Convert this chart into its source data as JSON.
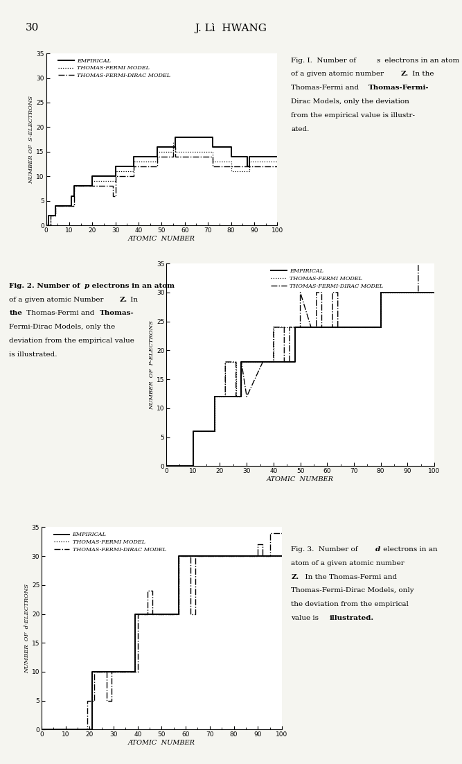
{
  "page_title": "J. Lì  HWANG",
  "page_number": "30",
  "fig1": {
    "ylabel": "NUMBER OF  S-ELECTRONS",
    "xlabel": "ATOMIC  NUMBER",
    "xlim": [
      0,
      100
    ],
    "ylim": [
      0,
      35
    ],
    "yticks": [
      0,
      5,
      10,
      15,
      20,
      25,
      30,
      35
    ],
    "xticks": [
      0,
      10,
      20,
      30,
      40,
      50,
      60,
      70,
      80,
      90,
      100
    ],
    "empirical_x": [
      0,
      1,
      1,
      2,
      2,
      3,
      3,
      4,
      4,
      10,
      10,
      11,
      11,
      12,
      12,
      19,
      19,
      20,
      20,
      29,
      29,
      30,
      30,
      37,
      37,
      38,
      38,
      47,
      47,
      48,
      48,
      55,
      55,
      56,
      56,
      72,
      72,
      80,
      80,
      87,
      87,
      88,
      88,
      100
    ],
    "empirical_y": [
      0,
      0,
      2,
      2,
      2,
      2,
      2,
      2,
      4,
      4,
      4,
      4,
      6,
      6,
      8,
      8,
      8,
      8,
      10,
      10,
      10,
      10,
      12,
      12,
      12,
      12,
      14,
      14,
      14,
      14,
      16,
      16,
      16,
      16,
      18,
      18,
      16,
      16,
      14,
      14,
      12,
      12,
      14,
      14
    ],
    "tf_x": [
      0,
      2,
      2,
      4,
      4,
      12,
      12,
      20,
      20,
      21,
      21,
      29,
      29,
      30,
      30,
      37,
      37,
      38,
      38,
      48,
      48,
      55,
      55,
      56,
      56,
      70,
      70,
      72,
      72,
      80,
      80,
      87,
      87,
      88,
      88,
      100
    ],
    "tf_y": [
      0,
      0,
      2,
      2,
      4,
      4,
      8,
      8,
      9,
      9,
      9,
      9,
      9,
      9,
      11,
      11,
      11,
      11,
      13,
      13,
      15,
      15,
      17,
      17,
      15,
      15,
      15,
      15,
      13,
      13,
      11,
      11,
      11,
      11,
      13,
      13
    ],
    "tfd_x": [
      0,
      2,
      2,
      4,
      4,
      12,
      12,
      20,
      20,
      21,
      21,
      29,
      29,
      30,
      30,
      37,
      37,
      38,
      38,
      48,
      48,
      55,
      55,
      56,
      56,
      63,
      63,
      71,
      71,
      72,
      72,
      80,
      80,
      87,
      87,
      88,
      88,
      100
    ],
    "tfd_y": [
      0,
      0,
      2,
      2,
      4,
      4,
      8,
      8,
      8,
      8,
      8,
      8,
      6,
      6,
      10,
      10,
      10,
      10,
      12,
      12,
      14,
      14,
      16,
      16,
      14,
      14,
      14,
      14,
      14,
      14,
      12,
      12,
      12,
      12,
      12,
      12,
      12,
      12
    ],
    "caption": "Fig. I.  Number of  s  electrons in an atom\n         of a given atomic number  Z.  In the\n         Thomas-Fermi and  Thomas-Fermi-\n         Dirac Models, only the deviation\n         from the empirical value is illustr-\n         ated."
  },
  "fig2": {
    "ylabel": "NUMBER  OF  P-ELECTRONS",
    "xlabel": "ATOMIC  NUMBER",
    "xlim": [
      0,
      100
    ],
    "ylim": [
      0,
      35
    ],
    "yticks": [
      0,
      5,
      10,
      15,
      20,
      25,
      30,
      35
    ],
    "xticks": [
      0,
      10,
      20,
      30,
      40,
      50,
      60,
      70,
      80,
      90,
      100
    ],
    "empirical_x": [
      0,
      2,
      2,
      10,
      10,
      12,
      12,
      18,
      18,
      20,
      20,
      28,
      28,
      30,
      30,
      36,
      36,
      40,
      40,
      48,
      48,
      54,
      54,
      56,
      56,
      80,
      80,
      86,
      86,
      90,
      90,
      100
    ],
    "empirical_y": [
      0,
      0,
      0,
      0,
      6,
      6,
      6,
      6,
      12,
      12,
      12,
      12,
      18,
      18,
      18,
      18,
      18,
      18,
      18,
      18,
      24,
      24,
      24,
      24,
      24,
      24,
      30,
      30,
      30,
      30,
      30,
      30
    ],
    "tf_x": [
      0,
      2,
      2,
      10,
      10,
      12,
      12,
      18,
      18,
      20,
      20,
      22,
      22,
      26,
      26,
      28,
      28,
      30,
      30,
      36,
      36,
      40,
      40,
      48,
      48,
      54,
      54,
      56,
      56,
      80,
      80,
      86,
      86,
      90,
      90,
      100
    ],
    "tf_y": [
      0,
      0,
      0,
      0,
      6,
      6,
      6,
      6,
      12,
      12,
      12,
      12,
      18,
      18,
      12,
      12,
      18,
      18,
      18,
      18,
      18,
      18,
      24,
      24,
      24,
      24,
      24,
      24,
      24,
      24,
      30,
      30,
      30,
      30,
      30,
      30
    ],
    "tfd_x": [
      0,
      2,
      2,
      10,
      10,
      12,
      12,
      18,
      18,
      20,
      20,
      22,
      22,
      26,
      26,
      28,
      28,
      30,
      30,
      36,
      36,
      40,
      40,
      44,
      44,
      46,
      46,
      50,
      50,
      54,
      54,
      56,
      56,
      58,
      58,
      62,
      62,
      64,
      64,
      80,
      80,
      86,
      86,
      90,
      90,
      94,
      94,
      100
    ],
    "tfd_y": [
      0,
      0,
      0,
      0,
      6,
      6,
      6,
      6,
      12,
      12,
      12,
      12,
      18,
      18,
      12,
      12,
      18,
      12,
      12,
      18,
      18,
      18,
      24,
      24,
      18,
      18,
      24,
      24,
      30,
      24,
      24,
      24,
      30,
      30,
      24,
      24,
      30,
      30,
      24,
      24,
      30,
      30,
      30,
      30,
      30,
      30,
      36,
      36
    ],
    "caption": "Fig. 2.  Number of  p  electrons in an atom\n         of a given atomic Number  Z.  In\n         the Thomas-Fermi and  Thomas-\n         Fermi-Dirac Models, only the\n         deviation from the empirical value\n         is illustrated."
  },
  "fig3": {
    "ylabel": "NUMBER  OF  d-ELECTRONS",
    "xlabel": "ATOMIC  NUMBER",
    "xlim": [
      0,
      100
    ],
    "ylim": [
      0,
      35
    ],
    "yticks": [
      0,
      5,
      10,
      15,
      20,
      25,
      30,
      35
    ],
    "xticks": [
      0,
      10,
      20,
      30,
      40,
      50,
      60,
      70,
      80,
      90,
      100
    ],
    "empirical_x": [
      0,
      20,
      20,
      21,
      21,
      29,
      29,
      30,
      30,
      38,
      38,
      39,
      39,
      47,
      47,
      48,
      48,
      56,
      56,
      57,
      57,
      71,
      71,
      72,
      72,
      78,
      78,
      80,
      80,
      88,
      88,
      89,
      89,
      100
    ],
    "empirical_y": [
      0,
      0,
      0,
      0,
      10,
      10,
      10,
      10,
      10,
      10,
      10,
      10,
      20,
      20,
      20,
      20,
      20,
      20,
      20,
      20,
      30,
      30,
      30,
      30,
      30,
      30,
      30,
      30,
      30,
      30,
      30,
      30,
      30,
      30
    ],
    "tf_x": [
      0,
      20,
      20,
      21,
      21,
      29,
      29,
      30,
      30,
      38,
      38,
      39,
      39,
      47,
      47,
      48,
      48,
      56,
      56,
      57,
      57,
      71,
      71,
      72,
      72,
      78,
      78,
      80,
      80,
      88,
      88,
      89,
      89,
      100
    ],
    "tf_y": [
      0,
      0,
      0,
      0,
      10,
      10,
      10,
      10,
      10,
      10,
      10,
      10,
      20,
      20,
      20,
      20,
      20,
      20,
      20,
      20,
      30,
      30,
      30,
      30,
      30,
      30,
      30,
      30,
      30,
      30,
      30,
      30,
      30,
      30
    ],
    "tfd_x": [
      0,
      18,
      18,
      19,
      19,
      22,
      22,
      27,
      27,
      29,
      29,
      36,
      36,
      38,
      38,
      40,
      40,
      44,
      44,
      46,
      46,
      48,
      48,
      56,
      56,
      57,
      57,
      62,
      62,
      64,
      64,
      68,
      68,
      80,
      80,
      88,
      88,
      90,
      90,
      92,
      92,
      95,
      95,
      100
    ],
    "tfd_y": [
      0,
      0,
      0,
      0,
      5,
      5,
      10,
      10,
      5,
      5,
      10,
      10,
      10,
      10,
      10,
      10,
      20,
      20,
      24,
      24,
      20,
      20,
      20,
      20,
      20,
      20,
      30,
      30,
      20,
      20,
      30,
      30,
      30,
      30,
      30,
      30,
      30,
      30,
      32,
      32,
      30,
      30,
      34,
      34
    ],
    "caption": "Fig. 3.  Number of  d  electrons in an\n         atom of a given atomic number\n         Z.  In the Thomas-Fermi and\n         Thomas-Fermi-Dirac Models, only\n         the deviation from the empirical\n         value is  illustrated."
  },
  "line_styles": {
    "empirical": {
      "color": "#000000",
      "lw": 1.4,
      "ls": "-"
    },
    "tf": {
      "color": "#000000",
      "lw": 0.9,
      "ls": ":",
      "dashes": []
    },
    "tfd": {
      "color": "#000000",
      "lw": 1.0,
      "ls": "-."
    }
  },
  "legend_labels": [
    "EMPIRICAL",
    "THOMAS-FERMI MODEL",
    "THOMAS-FERMI-DIRAC MODEL"
  ],
  "bg_color": "#f5f5f0",
  "text_color": "#000000"
}
